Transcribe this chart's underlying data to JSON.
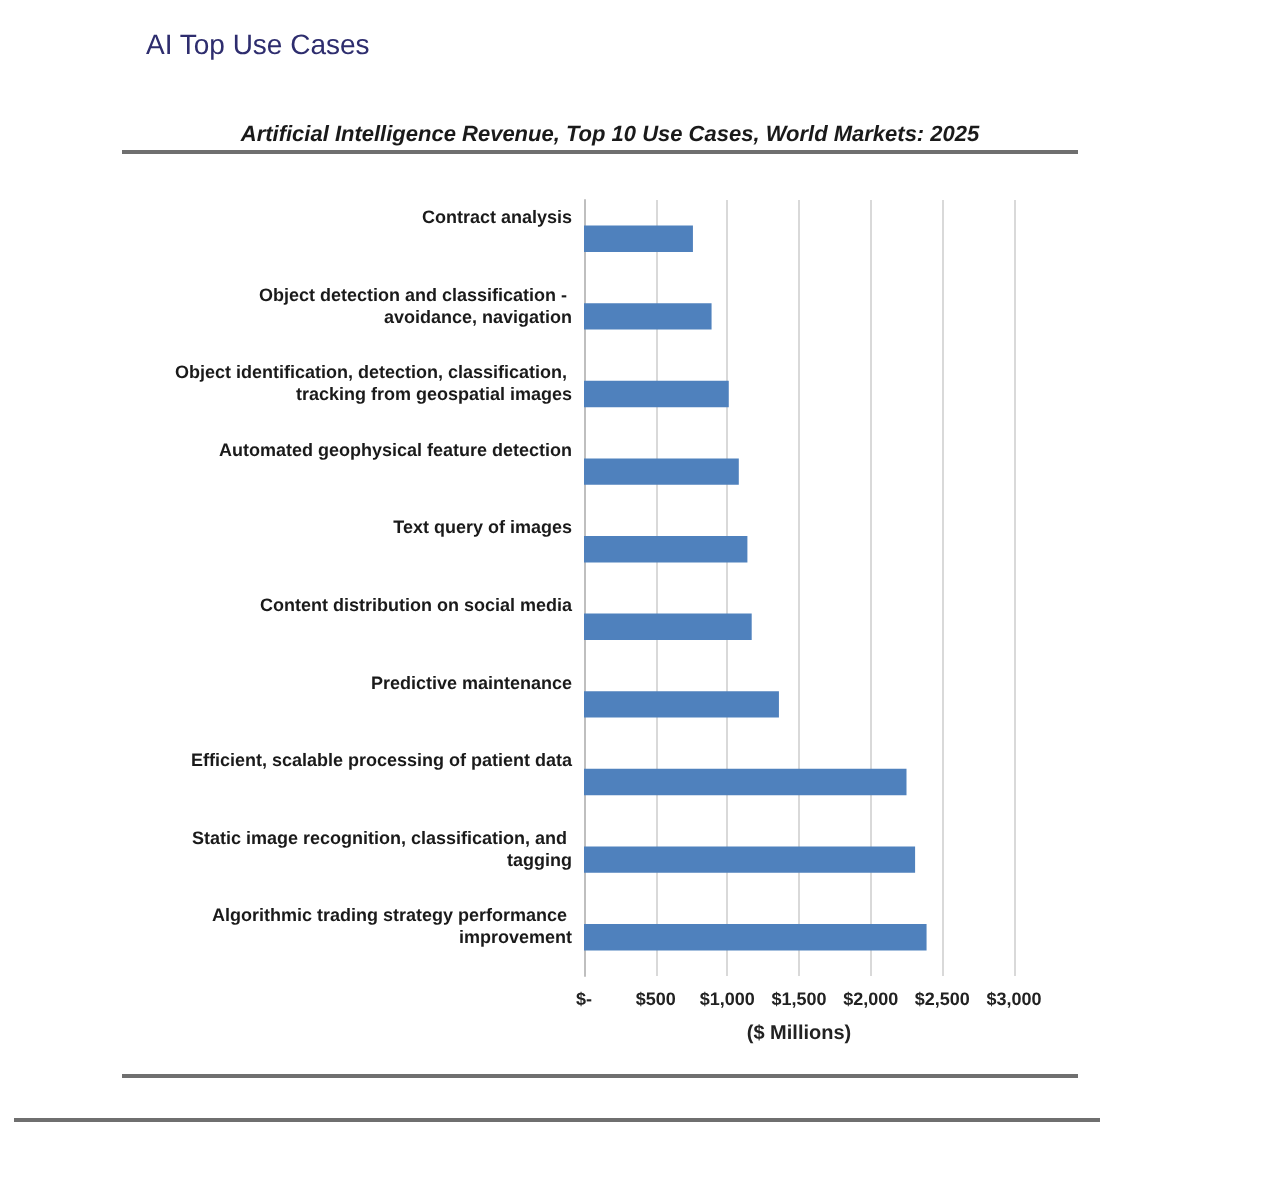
{
  "chart_data": {
    "type": "bar",
    "orientation": "horizontal",
    "title": "AI Top Use Cases",
    "subtitle": "Artificial Intelligence Revenue, Top 10 Use Cases, World Markets: 2025",
    "xlabel": "($ Millions)",
    "categories": [
      "Contract analysis",
      "Object detection and classification - avoidance, navigation",
      "Object identification, detection, classification, tracking from geospatial images",
      "Automated geophysical feature detection",
      "Text query of images",
      "Content distribution on social media",
      "Predictive maintenance",
      "Efficient, scalable processing of patient data",
      "Static image recognition, classification, and tagging",
      "Algorithmic trading strategy performance improvement"
    ],
    "values": [
      760,
      890,
      1010,
      1080,
      1140,
      1170,
      1360,
      2250,
      2310,
      2390
    ],
    "color": "#4f81bd",
    "xlim": [
      0,
      3000
    ],
    "xticks": [
      {
        "value": 0,
        "label": "$-"
      },
      {
        "value": 500,
        "label": "$500"
      },
      {
        "value": 1000,
        "label": "$1,000"
      },
      {
        "value": 1500,
        "label": "$1,500"
      },
      {
        "value": 2000,
        "label": "$2,000"
      },
      {
        "value": 2500,
        "label": "$2,500"
      },
      {
        "value": 3000,
        "label": "$3,000"
      }
    ],
    "grid": "x"
  }
}
